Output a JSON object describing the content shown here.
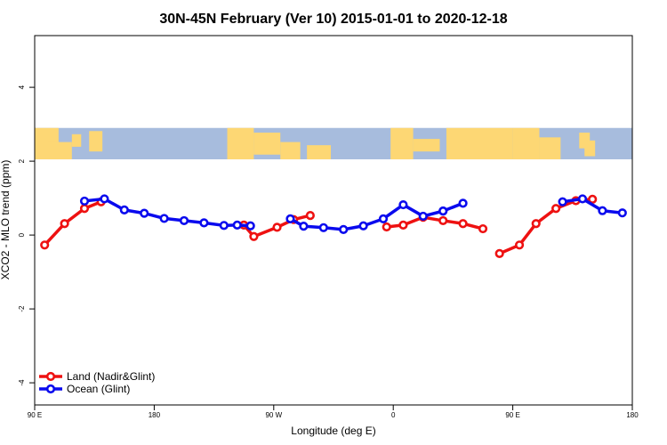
{
  "chart_data": {
    "type": "line",
    "title": "30N-45N February (Ver 10)   2015-01-01 to 2020-12-18",
    "xlabel": "Longitude (deg E)",
    "ylabel": "XCO2 - MLO trend (ppm)",
    "x_ticks": [
      {
        "value": 90,
        "label": "90 E"
      },
      {
        "value": 180,
        "label": "180"
      },
      {
        "value": 270,
        "label": "90 W"
      },
      {
        "value": 360,
        "label": "0"
      },
      {
        "value": 450,
        "label": "90 E"
      },
      {
        "value": 540,
        "label": "180"
      }
    ],
    "y_ticks": [
      {
        "value": -4,
        "label": "-4"
      },
      {
        "value": -2,
        "label": "-2"
      },
      {
        "value": 0,
        "label": "0"
      },
      {
        "value": 2,
        "label": "2"
      },
      {
        "value": 4,
        "label": "4"
      }
    ],
    "xlim": [
      90,
      540
    ],
    "ylim": [
      -4.6,
      5.4
    ],
    "map_band": {
      "ylim": [
        2.05,
        2.9
      ],
      "land_color": "#FDD774",
      "ocean_color": "#A7BCDD"
    },
    "grid": false,
    "legend_position": "bottom-left",
    "series": [
      {
        "name": "Land (Nadir&Glint)",
        "color": "#EE1111",
        "segments": [
          {
            "x": [
              97.5,
              112.5,
              127.5,
              140
            ],
            "y": [
              -0.27,
              0.31,
              0.72,
              0.9
            ]
          },
          {
            "x": [
              247.5,
              255,
              272.5,
              285,
              297.5
            ],
            "y": [
              0.27,
              -0.04,
              0.21,
              0.42,
              0.53
            ]
          },
          {
            "x": [
              355,
              367.5,
              382.5,
              397.5,
              412.5,
              427.5
            ],
            "y": [
              0.22,
              0.27,
              0.48,
              0.39,
              0.31,
              0.17
            ]
          },
          {
            "x": [
              440,
              455,
              467.5,
              482.5,
              497.5,
              510
            ],
            "y": [
              -0.5,
              -0.27,
              0.31,
              0.72,
              0.93,
              0.97
            ]
          }
        ]
      },
      {
        "name": "Ocean (Glint)",
        "color": "#0A0AEE",
        "segments": [
          {
            "x": [
              127.5,
              142.5,
              157.5,
              172.5,
              187.5,
              202.5,
              217.5,
              232.5,
              242.5,
              252.5
            ],
            "y": [
              0.92,
              0.98,
              0.68,
              0.59,
              0.45,
              0.39,
              0.33,
              0.26,
              0.27,
              0.25
            ]
          },
          {
            "x": [
              282.5,
              292.5,
              307.5,
              322.5,
              337.5,
              352.5,
              367.5,
              382.5,
              397.5
            ],
            "y": [
              0.44,
              0.24,
              0.2,
              0.15,
              0.25,
              0.44,
              0.82,
              0.51,
              0.65
            ]
          },
          {
            "x": [
              397.5,
              412.5
            ],
            "y": [
              0.65,
              0.86
            ]
          },
          {
            "x": [
              487.5,
              502.5,
              517.5,
              532.5
            ],
            "y": [
              0.9,
              0.98,
              0.66,
              0.6
            ]
          }
        ]
      }
    ]
  }
}
